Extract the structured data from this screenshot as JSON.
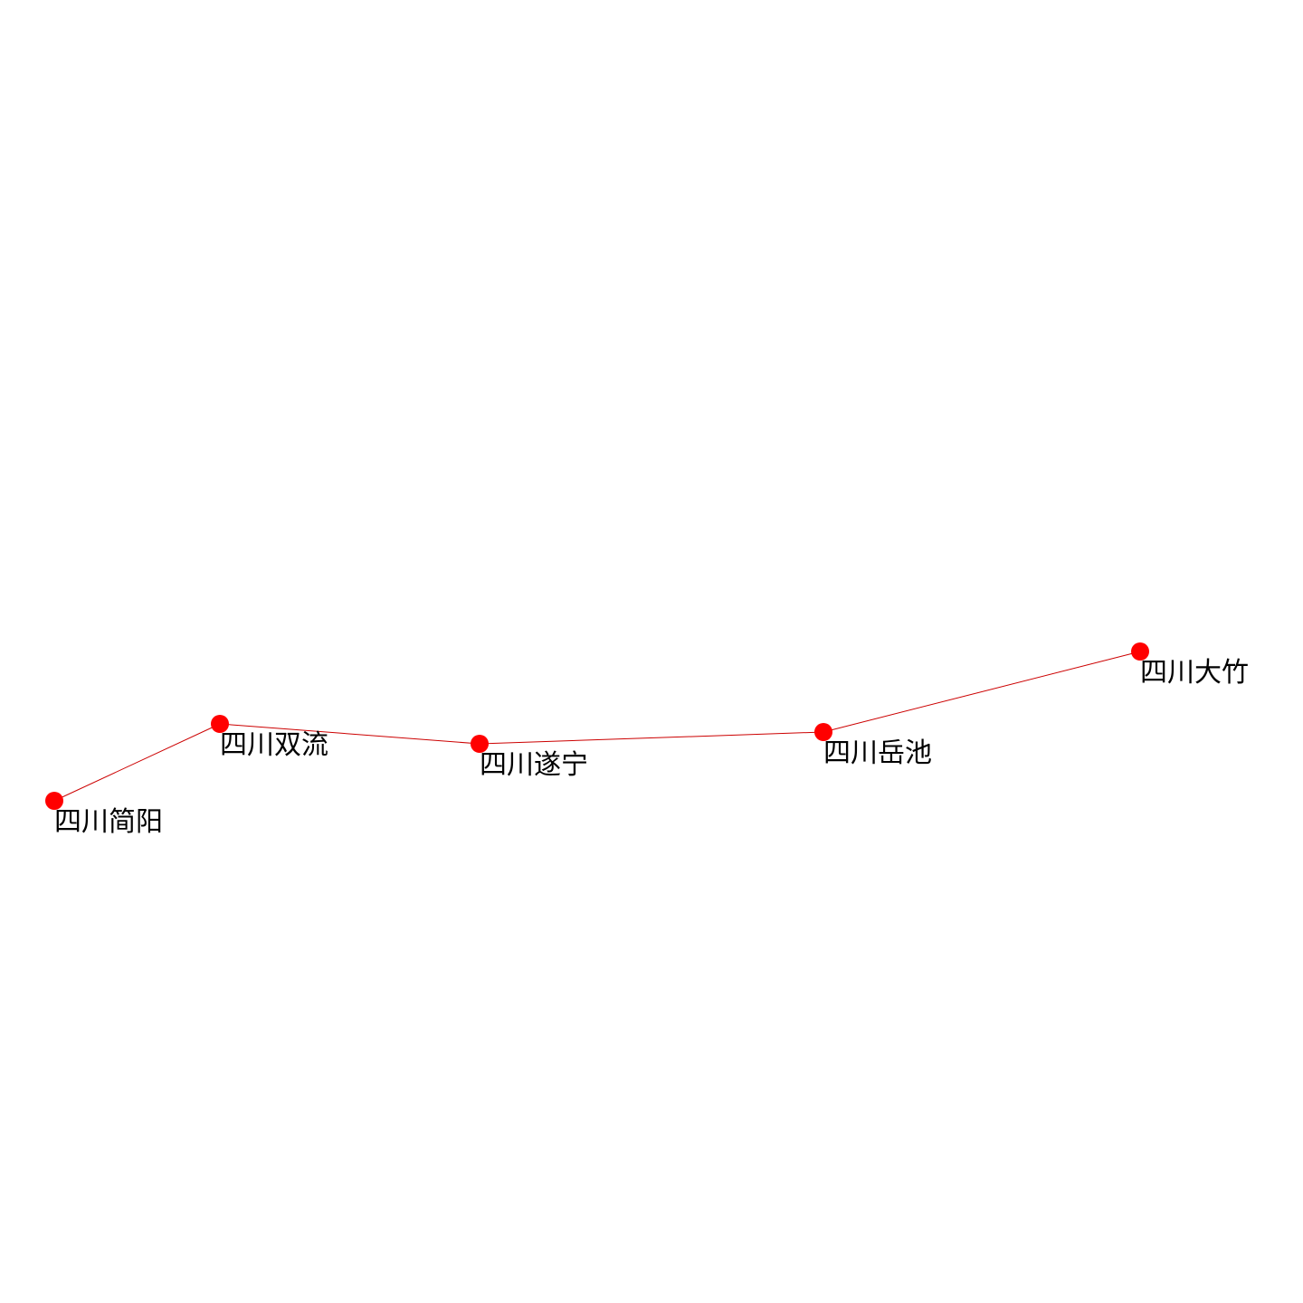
{
  "colors": {
    "node": "#ff0000",
    "edge": "#cc0000",
    "label": "#000000",
    "background": "#ffffff"
  },
  "nodes": [
    {
      "id": "jianyang",
      "label": "四川简阳"
    },
    {
      "id": "shuangliu",
      "label": "四川双流"
    },
    {
      "id": "suining",
      "label": "四川遂宁"
    },
    {
      "id": "yuechi",
      "label": "四川岳池"
    },
    {
      "id": "dazhu",
      "label": "四川大竹"
    }
  ],
  "edges": [
    {
      "from": "jianyang",
      "to": "shuangliu"
    },
    {
      "from": "shuangliu",
      "to": "suining"
    },
    {
      "from": "suining",
      "to": "yuechi"
    },
    {
      "from": "yuechi",
      "to": "dazhu"
    }
  ]
}
